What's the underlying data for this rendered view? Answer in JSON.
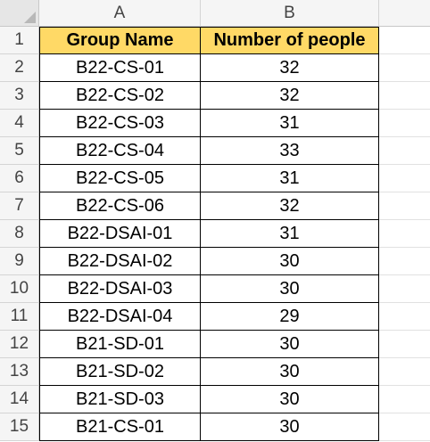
{
  "columns": [
    "A",
    "B"
  ],
  "table": {
    "headers": [
      "Group Name",
      "Number of people"
    ],
    "rows": [
      [
        "B22-CS-01",
        "32"
      ],
      [
        "B22-CS-02",
        "32"
      ],
      [
        "B22-CS-03",
        "31"
      ],
      [
        "B22-CS-04",
        "33"
      ],
      [
        "B22-CS-05",
        "31"
      ],
      [
        "B22-CS-06",
        "32"
      ],
      [
        "B22-DSAI-01",
        "31"
      ],
      [
        "B22-DSAI-02",
        "30"
      ],
      [
        "B22-DSAI-03",
        "30"
      ],
      [
        "B22-DSAI-04",
        "29"
      ],
      [
        "B21-SD-01",
        "30"
      ],
      [
        "B21-SD-02",
        "30"
      ],
      [
        "B21-SD-03",
        "30"
      ],
      [
        "B21-CS-01",
        "30"
      ]
    ]
  },
  "row_numbers": [
    "1",
    "2",
    "3",
    "4",
    "5",
    "6",
    "7",
    "8",
    "9",
    "10",
    "11",
    "12",
    "13",
    "14",
    "15"
  ],
  "colors": {
    "header_fill": "#ffd966",
    "grid_header_bg": "#f5f5f5"
  }
}
